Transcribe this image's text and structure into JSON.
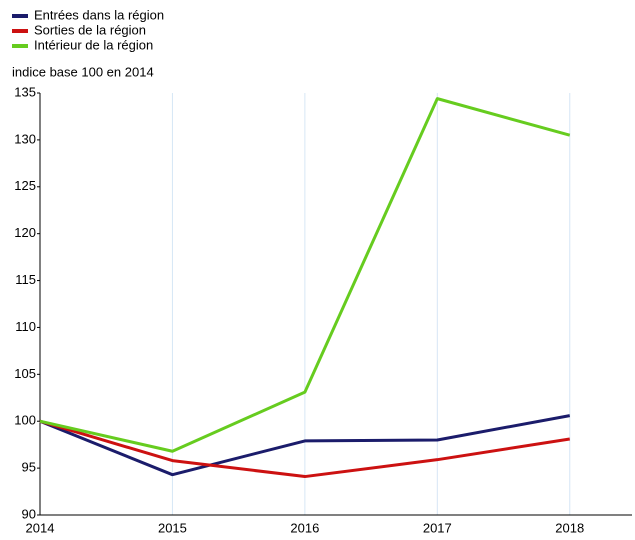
{
  "chart_data": {
    "type": "line",
    "subtitle": "indice base 100 en 2014",
    "x": [
      2014,
      2015,
      2016,
      2017,
      2018
    ],
    "series": [
      {
        "name": "Entrées dans la région",
        "color": "#1b1c6b",
        "values": [
          100,
          94.3,
          97.9,
          98.0,
          100.6
        ]
      },
      {
        "name": "Sorties de la région",
        "color": "#cc1111",
        "values": [
          100,
          95.8,
          94.1,
          95.9,
          98.1
        ]
      },
      {
        "name": "Intérieur de la région",
        "color": "#66cc1f",
        "values": [
          100,
          96.8,
          103.1,
          134.4,
          130.5
        ]
      }
    ],
    "xlim": [
      2014,
      2018.47
    ],
    "xticks": [
      2014,
      2015,
      2016,
      2017,
      2018
    ],
    "ylim": [
      90,
      135
    ],
    "yticks": [
      90,
      95,
      100,
      105,
      110,
      115,
      120,
      125,
      130,
      135
    ],
    "grid": "x",
    "legend": "top-left"
  }
}
